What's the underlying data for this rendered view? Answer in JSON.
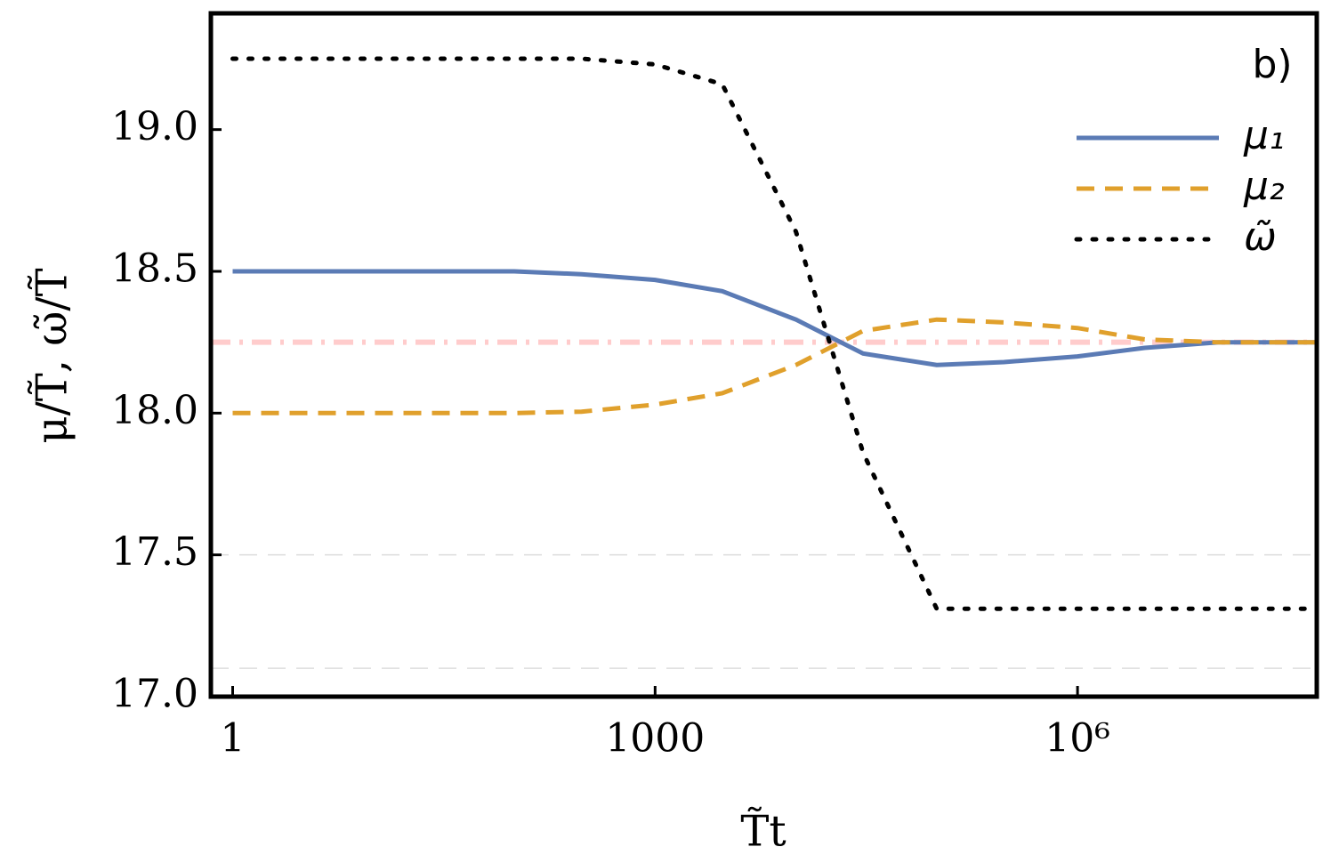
{
  "chart_data": {
    "type": "line",
    "annotation": "b)",
    "xlabel": "T̃t",
    "ylabel": "μ/T̃, ω̃/T̃",
    "xscale": "log",
    "xlim": [
      0.7,
      50000000
    ],
    "ylim": [
      17.0,
      19.41
    ],
    "xticks": [
      1,
      1000,
      {
        "value": 1000000,
        "label": "10⁶"
      }
    ],
    "yticks": [
      {
        "value": 17.0,
        "label": "17.0"
      },
      17.5,
      {
        "value": 18.0,
        "label": "18.0"
      },
      18.5,
      {
        "value": 19.0,
        "label": "19.0"
      }
    ],
    "legend": "upper right",
    "x": [
      1,
      3,
      10,
      30,
      100,
      300,
      1000,
      3000,
      10000,
      30000,
      100000,
      300000,
      1000000,
      3000000,
      10000000,
      30000000,
      50000000
    ],
    "series": [
      {
        "name": "μ₁",
        "color": "#5b7bb5",
        "style": "solid",
        "values": [
          18.5,
          18.5,
          18.5,
          18.5,
          18.5,
          18.49,
          18.47,
          18.43,
          18.33,
          18.21,
          18.17,
          18.18,
          18.2,
          18.23,
          18.25,
          18.25,
          18.25
        ]
      },
      {
        "name": "μ₂",
        "color": "#e0a02c",
        "style": "dashed",
        "values": [
          18.0,
          18.0,
          18.0,
          18.0,
          18.0,
          18.005,
          18.03,
          18.07,
          18.17,
          18.29,
          18.33,
          18.32,
          18.3,
          18.26,
          18.25,
          18.25,
          18.25
        ]
      },
      {
        "name": "ω̃",
        "color": "#000000",
        "style": "dotted",
        "values": [
          19.25,
          19.25,
          19.25,
          19.25,
          19.25,
          19.25,
          19.23,
          19.16,
          18.64,
          17.86,
          17.31,
          17.31,
          17.31,
          17.31,
          17.31,
          17.31,
          17.31
        ]
      }
    ],
    "reference_lines": [
      {
        "y": 18.25,
        "color": "#ffcccc",
        "style": "dashdot"
      },
      {
        "y": 17.5,
        "color": "#dddddd",
        "style": "dashed"
      },
      {
        "y": 17.1,
        "color": "#dddddd",
        "style": "dashed"
      }
    ]
  }
}
